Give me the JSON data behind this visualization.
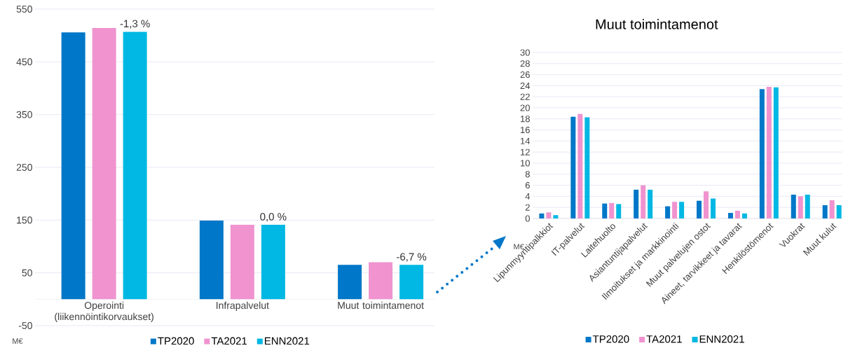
{
  "chart_data": [
    {
      "type": "bar",
      "ylabel": "M€",
      "categories": [
        "Operointi (liikennöintikorvaukset)",
        "Infrapalvelut",
        "Muut toimintamenot"
      ],
      "series": [
        {
          "name": "TP2020",
          "color": "#0077c8",
          "values": [
            506,
            149,
            65
          ]
        },
        {
          "name": "TA2021",
          "color": "#f093cf",
          "values": [
            514,
            141,
            70
          ]
        },
        {
          "name": "ENN2021",
          "color": "#00b8e3",
          "values": [
            507,
            141,
            65
          ]
        }
      ],
      "ylim": [
        -50,
        550
      ],
      "yticks": [
        -50,
        50,
        150,
        250,
        350,
        450,
        550
      ],
      "grid": "y",
      "legend": "bottom",
      "annotations": [
        "-1,3 %",
        "0,0 %",
        "-6,7 %"
      ]
    },
    {
      "type": "bar",
      "title": "Muut toimintamenot",
      "ylabel": "M€",
      "categories": [
        "Lipunmyyntipalkkiot",
        "IT-palvelut",
        "Laitehuolto",
        "Asiantuntijapalvelut",
        "Ilmoitukset ja markkinointi",
        "Muut palvelujen ostot",
        "Aineet, tarvikkeet ja tavarat",
        "Henkilöstömenot",
        "Vuokrat",
        "Muut kulut"
      ],
      "series": [
        {
          "name": "TP2020",
          "color": "#0077c8",
          "values": [
            0.9,
            18.4,
            2.7,
            5.2,
            2.2,
            3.2,
            1.0,
            23.4,
            4.3,
            2.4
          ]
        },
        {
          "name": "TA2021",
          "color": "#f093cf",
          "values": [
            1.1,
            18.9,
            2.8,
            6.0,
            3.0,
            4.9,
            1.4,
            23.8,
            4.0,
            3.3
          ]
        },
        {
          "name": "ENN2021",
          "color": "#00b8e3",
          "values": [
            0.6,
            18.3,
            2.6,
            5.2,
            3.0,
            3.6,
            0.9,
            23.7,
            4.3,
            2.4
          ]
        }
      ],
      "ylim": [
        0,
        30
      ],
      "yticks": [
        0,
        2,
        4,
        6,
        8,
        10,
        12,
        14,
        16,
        18,
        20,
        22,
        24,
        26,
        28,
        30
      ],
      "grid": "y",
      "legend": "bottom"
    }
  ]
}
